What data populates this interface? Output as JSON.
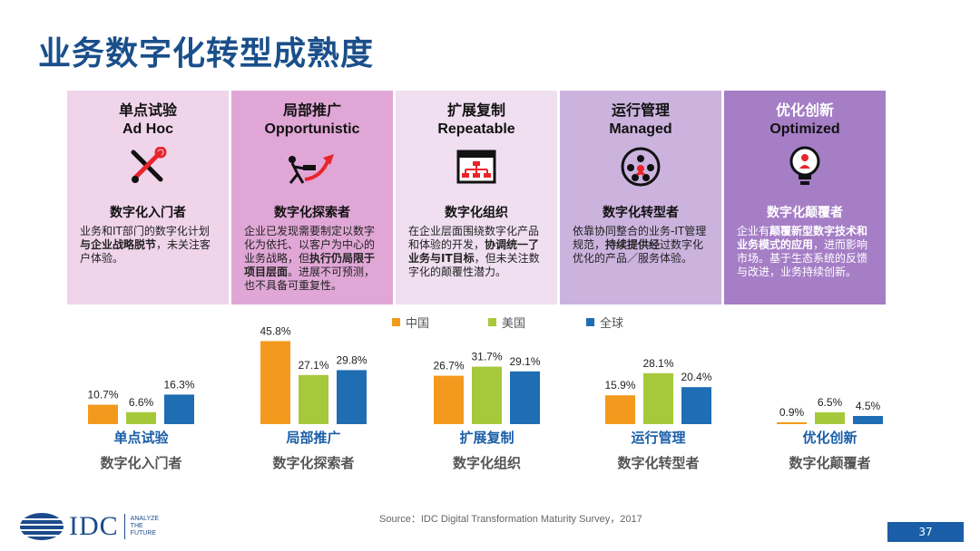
{
  "title": "业务数字化转型成熟度",
  "stages": [
    {
      "cn": "单点试验",
      "en": "Ad Hoc",
      "icon": "tools-icon",
      "bg": "#efd4ea",
      "sub": "数字化入门者",
      "desc_parts": [
        {
          "t": "业务和IT部门的数字化计划"
        },
        {
          "t": "与企业战略脱节",
          "b": true
        },
        {
          "t": "，未关注客户体验。"
        }
      ]
    },
    {
      "cn": "局部推广",
      "en": "Opportunistic",
      "icon": "push-arrow-icon",
      "bg": "#e0a7d6",
      "sub": "数字化探索者",
      "desc_parts": [
        {
          "t": "企业已发现需要制定以数字化为依托、以客户为中心的业务战略，但"
        },
        {
          "t": "执行仍局限于项目层面",
          "b": true
        },
        {
          "t": "。进展不可预测，也不具备可重复性。"
        }
      ]
    },
    {
      "cn": "扩展复制",
      "en": "Repeatable",
      "icon": "org-window-icon",
      "bg": "#efdff0",
      "sub": "数字化组织",
      "desc_parts": [
        {
          "t": "在企业层面围绕数字化产品和体验的开发，"
        },
        {
          "t": "协调统一了业务与IT目标",
          "b": true
        },
        {
          "t": "，但未关注数字化的颠覆性潜力。"
        }
      ]
    },
    {
      "cn": "运行管理",
      "en": "Managed",
      "icon": "network-people-icon",
      "bg": "#cbb3de",
      "sub": "数字化转型者",
      "desc_parts": [
        {
          "t": "依靠协同整合的业务-IT管理规范，"
        },
        {
          "t": "持续提供经",
          "b": true
        },
        {
          "t": "过数字化优化的产品／服务体验。"
        }
      ]
    },
    {
      "cn": "优化创新",
      "en": "Optimized",
      "icon": "lightbulb-icon",
      "bg": "#a57ec6",
      "sub": "数字化颠覆者",
      "dark": true,
      "desc_parts": [
        {
          "t": "企业有"
        },
        {
          "t": "颠覆新型数字技术和业务模式的应用",
          "b": true
        },
        {
          "t": "，进而影响市场。基于生态系统的反馈与改进，业务持续创新。"
        }
      ]
    }
  ],
  "chart_data": {
    "type": "bar",
    "categories": [
      "单点试验",
      "局部推广",
      "扩展复制",
      "运行管理",
      "优化创新"
    ],
    "subtitles": [
      "数字化入门者",
      "数字化探索者",
      "数字化组织",
      "数字化转型者",
      "数字化颠覆者"
    ],
    "series": [
      {
        "name": "中国",
        "color": "#f39a1e",
        "values": [
          10.7,
          45.8,
          26.7,
          15.9,
          0.9
        ]
      },
      {
        "name": "美国",
        "color": "#a5c93a",
        "values": [
          6.6,
          27.1,
          31.7,
          28.1,
          6.5
        ]
      },
      {
        "name": "全球",
        "color": "#1f6db3",
        "values": [
          16.3,
          29.8,
          29.1,
          20.4,
          4.5
        ]
      }
    ],
    "unit": "%",
    "legend_position": "top",
    "ylim": [
      0,
      46
    ]
  },
  "source": "Source：IDC Digital Transformation Maturity Survey，2017",
  "logo": {
    "name": "IDC",
    "tagline": [
      "ANALYZE",
      "THE",
      "FUTURE"
    ]
  },
  "page_number": "37"
}
